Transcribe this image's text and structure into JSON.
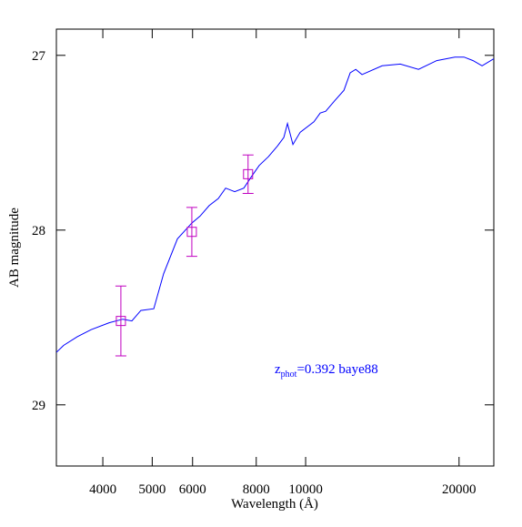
{
  "chart_data": {
    "type": "line",
    "xlabel": "Wavelength (Å)",
    "ylabel": "AB magnitude",
    "xscale": "log",
    "xlim": [
      3243,
      23400
    ],
    "ylim": [
      29.35,
      26.85
    ],
    "xticks": [
      4000,
      5000,
      6000,
      8000,
      10000,
      20000
    ],
    "yticks": [
      27,
      28,
      29
    ],
    "line": {
      "color": "#0000ff",
      "x": [
        3243,
        3350,
        3565,
        3794,
        4115,
        4379,
        4560,
        4750,
        5035,
        5265,
        5603,
        5980,
        6208,
        6468,
        6738,
        6966,
        7259,
        7563,
        7846,
        8107,
        8449,
        8803,
        9060,
        9210,
        9441,
        9756,
        10380,
        10680,
        10950,
        11400,
        11890,
        12230,
        12540,
        12900,
        14130,
        15340,
        16650,
        18080,
        19630,
        20450,
        21310,
        22190,
        23400
      ],
      "values": [
        28.7,
        28.66,
        28.61,
        28.57,
        28.53,
        28.51,
        28.52,
        28.46,
        28.45,
        28.25,
        28.05,
        27.96,
        27.92,
        27.86,
        27.82,
        27.76,
        27.78,
        27.76,
        27.69,
        27.63,
        27.58,
        27.52,
        27.47,
        27.39,
        27.51,
        27.44,
        27.38,
        27.33,
        27.32,
        27.26,
        27.2,
        27.1,
        27.08,
        27.11,
        27.06,
        27.05,
        27.08,
        27.03,
        27.01,
        27.01,
        27.03,
        27.06,
        27.02
      ]
    },
    "points": {
      "color": "#c000c0",
      "x": [
        4340,
        5980,
        7710
      ],
      "values": [
        28.52,
        28.01,
        27.68
      ],
      "errors": [
        0.2,
        0.14,
        0.11
      ]
    },
    "annotation": {
      "main": "z",
      "sub": "phot",
      "rest": "=0.392 baye88",
      "color": "#0000ff"
    }
  }
}
